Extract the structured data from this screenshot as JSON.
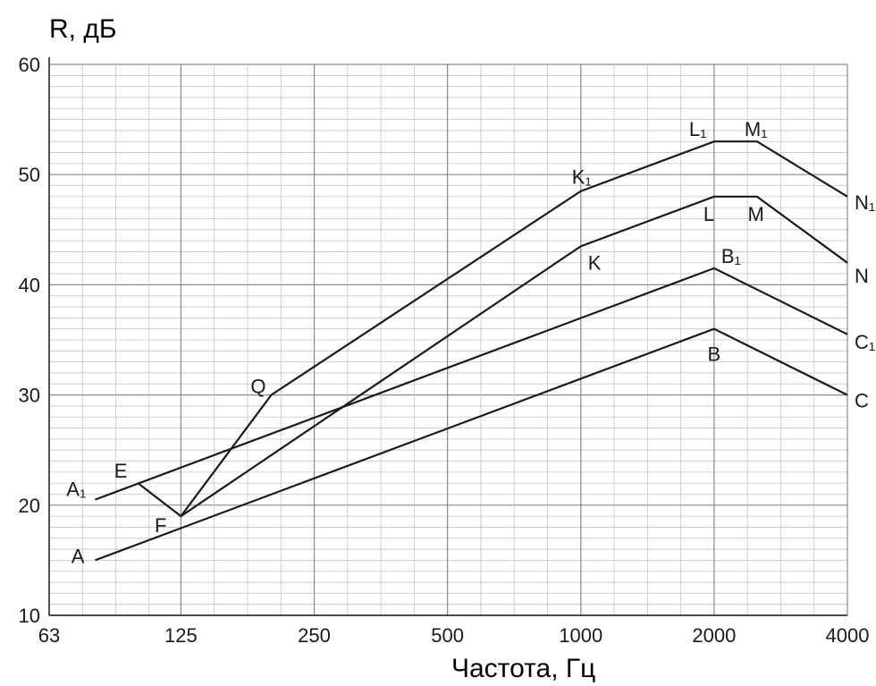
{
  "chart_data": {
    "type": "line",
    "xlabel": "Частота, Гц",
    "ylabel": "R, дБ",
    "xscale": "log2",
    "xlim": [
      63,
      4000
    ],
    "ylim": [
      10,
      60
    ],
    "xticks": [
      "63",
      "125",
      "250",
      "500",
      "1000",
      "2000",
      "4000"
    ],
    "yticks": [
      "10",
      "20",
      "30",
      "40",
      "50",
      "60"
    ],
    "grid": true,
    "series": [
      {
        "points": [
          {
            "label": "A",
            "x": 80,
            "y": 15
          },
          {
            "label": "B",
            "x": 2000,
            "y": 36
          },
          {
            "label": "C",
            "x": 4000,
            "y": 30
          }
        ]
      },
      {
        "points": [
          {
            "label": "A₁",
            "x": 80,
            "y": 20.5
          },
          {
            "label": "B₁",
            "x": 2000,
            "y": 41.5
          },
          {
            "label": "C₁",
            "x": 4000,
            "y": 35.5
          }
        ]
      },
      {
        "points": [
          {
            "label": "E",
            "x": 100,
            "y": 22
          },
          {
            "label": "F",
            "x": 125,
            "y": 19
          },
          {
            "label": "K",
            "x": 1000,
            "y": 43.5
          },
          {
            "label": "L",
            "x": 2000,
            "y": 48
          },
          {
            "label": "M",
            "x": 2500,
            "y": 48
          },
          {
            "label": "N",
            "x": 4000,
            "y": 42
          }
        ]
      },
      {
        "points": [
          {
            "label": "F",
            "x": 125,
            "y": 19
          },
          {
            "label": "Q",
            "x": 200,
            "y": 30
          },
          {
            "label": "K₁",
            "x": 1000,
            "y": 48.5
          },
          {
            "label": "L₁",
            "x": 2000,
            "y": 53
          },
          {
            "label": "M₁",
            "x": 2500,
            "y": 53
          },
          {
            "label": "N₁",
            "x": 4000,
            "y": 48
          }
        ]
      }
    ]
  }
}
